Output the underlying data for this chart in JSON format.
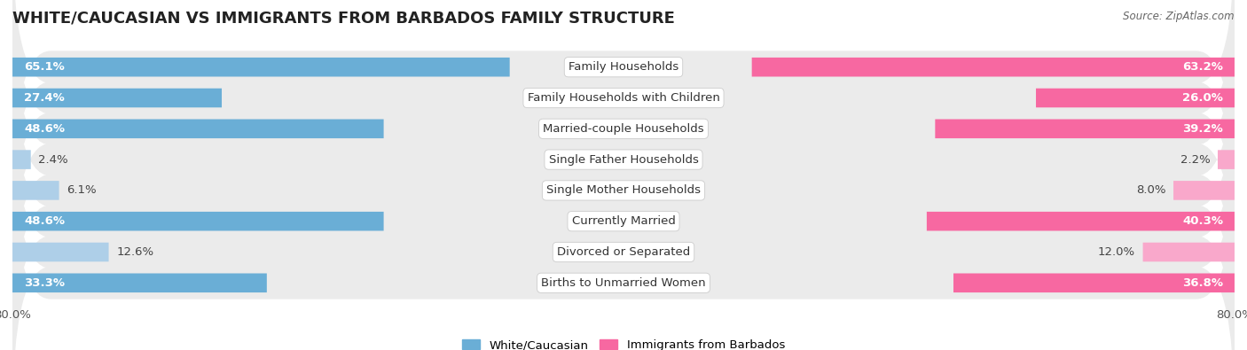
{
  "title": "WHITE/CAUCASIAN VS IMMIGRANTS FROM BARBADOS FAMILY STRUCTURE",
  "source": "Source: ZipAtlas.com",
  "categories": [
    "Family Households",
    "Family Households with Children",
    "Married-couple Households",
    "Single Father Households",
    "Single Mother Households",
    "Currently Married",
    "Divorced or Separated",
    "Births to Unmarried Women"
  ],
  "white_values": [
    65.1,
    27.4,
    48.6,
    2.4,
    6.1,
    48.6,
    12.6,
    33.3
  ],
  "immigrant_values": [
    63.2,
    26.0,
    39.2,
    2.2,
    8.0,
    40.3,
    12.0,
    36.8
  ],
  "max_val": 80.0,
  "white_color": "#6aaed6",
  "white_color_light": "#aecfe8",
  "immigrant_color": "#f768a1",
  "immigrant_color_light": "#f9a8cb",
  "white_label": "White/Caucasian",
  "immigrant_label": "Immigrants from Barbados",
  "row_bg_color": "#ebebeb",
  "bar_height": 0.62,
  "title_fontsize": 13,
  "label_fontsize": 9.5,
  "value_fontsize": 9.5,
  "tick_fontsize": 9.5,
  "legend_fontsize": 9.5,
  "inside_label_threshold": 20
}
